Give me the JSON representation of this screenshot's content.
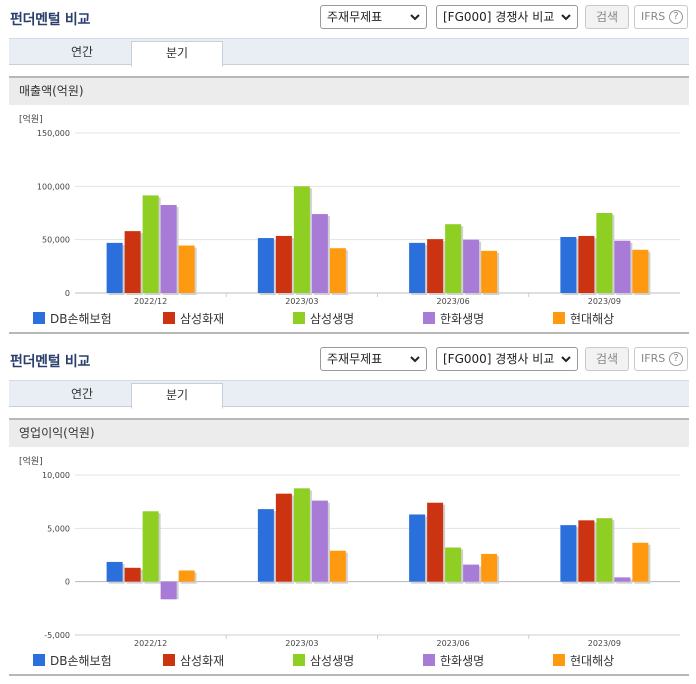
{
  "panels": [
    {
      "title": "펀더멘털 비교",
      "select_report": "주재무제표",
      "select_compare": "[FG000] 경쟁사 비교",
      "search_label": "검색",
      "ifrs_label": "IFRS",
      "help_label": "?",
      "tabs": [
        {
          "label": "연간",
          "active": false
        },
        {
          "label": "분기",
          "active": true
        }
      ],
      "chart_title": "매출액(억원)",
      "unit_label": "[억원]"
    },
    {
      "title": "펀더멘털 비교",
      "select_report": "주재무제표",
      "select_compare": "[FG000] 경쟁사 비교",
      "search_label": "검색",
      "ifrs_label": "IFRS",
      "help_label": "?",
      "tabs": [
        {
          "label": "연간",
          "active": false
        },
        {
          "label": "분기",
          "active": true
        }
      ],
      "chart_title": "영업이익(억원)",
      "unit_label": "[억원]"
    }
  ],
  "chart_data": [
    {
      "type": "bar",
      "title": "매출액(억원)",
      "ylabel": "[억원]",
      "ylim": [
        0,
        150000
      ],
      "yticks": [
        0,
        50000,
        100000,
        150000
      ],
      "ytick_labels": [
        "0",
        "50,000",
        "100,000",
        "150,000"
      ],
      "categories": [
        "2022/12",
        "2023/03",
        "2023/06",
        "2023/09"
      ],
      "legend_position": "bottom",
      "grid": true,
      "series": [
        {
          "name": "DB손해보험",
          "color": "#2a6fdc",
          "values": [
            47000,
            51500,
            47000,
            52500
          ]
        },
        {
          "name": "삼성화재",
          "color": "#cc3311",
          "values": [
            58000,
            53500,
            50500,
            53500
          ]
        },
        {
          "name": "삼성생명",
          "color": "#8fce22",
          "values": [
            91500,
            100000,
            64500,
            75000
          ]
        },
        {
          "name": "한화생명",
          "color": "#a77bd6",
          "values": [
            82500,
            74000,
            50000,
            49000
          ]
        },
        {
          "name": "현대해상",
          "color": "#ff9a10",
          "values": [
            44500,
            42000,
            39500,
            40500
          ]
        }
      ]
    },
    {
      "type": "bar",
      "title": "영업이익(억원)",
      "ylabel": "[억원]",
      "ylim": [
        -5000,
        10000
      ],
      "yticks": [
        -5000,
        0,
        5000,
        10000
      ],
      "ytick_labels": [
        "-5,000",
        "0",
        "5,000",
        "10,000"
      ],
      "categories": [
        "2022/12",
        "2023/03",
        "2023/06",
        "2023/09"
      ],
      "legend_position": "bottom",
      "grid": true,
      "series": [
        {
          "name": "DB손해보험",
          "color": "#2a6fdc",
          "values": [
            1850,
            6800,
            6300,
            5300
          ]
        },
        {
          "name": "삼성화재",
          "color": "#cc3311",
          "values": [
            1300,
            8250,
            7400,
            5750
          ]
        },
        {
          "name": "삼성생명",
          "color": "#8fce22",
          "values": [
            6600,
            8750,
            3200,
            5950
          ]
        },
        {
          "name": "한화생명",
          "color": "#a77bd6",
          "values": [
            -1650,
            7600,
            1600,
            400
          ]
        },
        {
          "name": "현대해상",
          "color": "#ff9a10",
          "values": [
            1050,
            2900,
            2600,
            3650
          ]
        }
      ]
    }
  ]
}
